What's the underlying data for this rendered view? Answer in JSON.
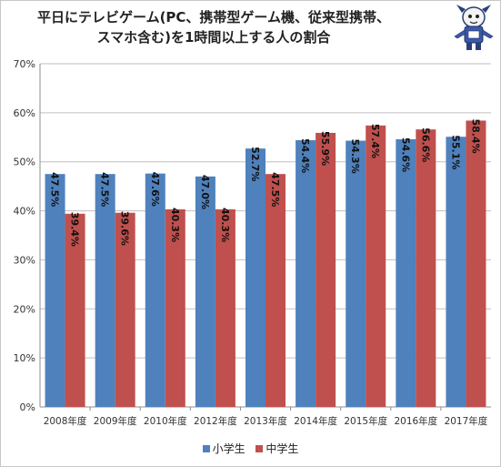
{
  "title_lines": [
    "平日にテレビゲーム(PC、携帯型ゲーム機、従来型携帯、",
    "スマホ含む)を1時間以上する人の割合"
  ],
  "colors": {
    "series_1": "#4f81bd",
    "series_2": "#c0504d",
    "grid": "#bfbfbf",
    "axis_text": "#333333"
  },
  "chart_data": {
    "type": "bar",
    "categories": [
      "2008年度",
      "2009年度",
      "2010年度",
      "2012年度",
      "2013年度",
      "2014年度",
      "2015年度",
      "2016年度",
      "2017年度"
    ],
    "series": [
      {
        "name": "小学生",
        "values": [
          47.5,
          47.5,
          47.6,
          47.0,
          52.7,
          54.4,
          54.3,
          54.6,
          55.1
        ],
        "labels": [
          "47.5%",
          "47.5%",
          "47.6%",
          "47.0%",
          "52.7%",
          "54.4%",
          "54.3%",
          "54.6%",
          "55.1%"
        ]
      },
      {
        "name": "中学生",
        "values": [
          39.4,
          39.6,
          40.3,
          40.3,
          47.5,
          55.9,
          57.4,
          56.6,
          58.4
        ],
        "labels": [
          "39.4%",
          "39.6%",
          "40.3%",
          "40.3%",
          "47.5%",
          "55.9%",
          "57.4%",
          "56.6%",
          "58.4%"
        ]
      }
    ],
    "y_ticks": [
      "0%",
      "10%",
      "20%",
      "30%",
      "40%",
      "50%",
      "60%",
      "70%"
    ],
    "ylim": [
      0,
      70
    ],
    "grid": true,
    "legend": "bottom"
  }
}
